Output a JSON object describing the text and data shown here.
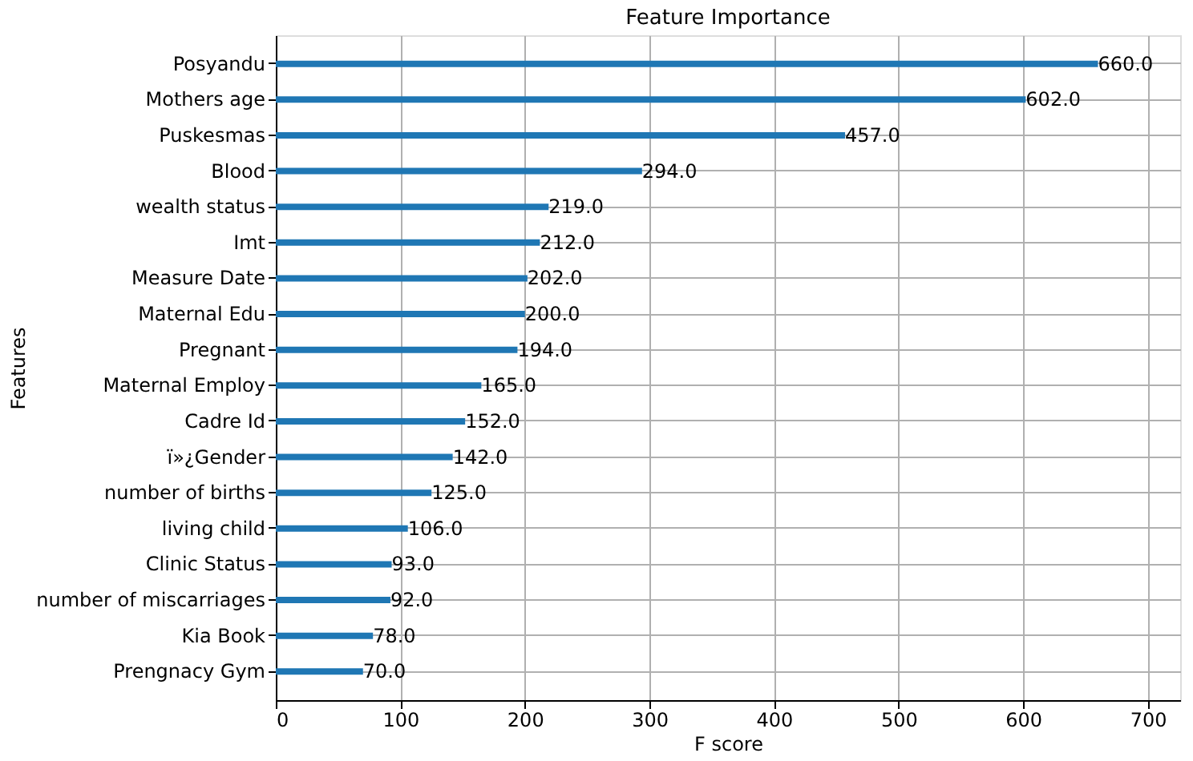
{
  "chart_data": {
    "type": "bar",
    "orientation": "horizontal",
    "title": "Feature Importance",
    "xlabel": "F score",
    "ylabel": "Features",
    "categories": [
      "Posyandu",
      "Mothers age",
      "Puskesmas",
      "Blood",
      "wealth status",
      "Imt",
      "Measure Date",
      "Maternal Edu",
      "Pregnant",
      "Maternal Employ",
      "Cadre Id",
      "ï»¿Gender",
      "number of births",
      "living child",
      "Clinic Status",
      "number of miscarriages",
      "Kia Book",
      "Prengnacy Gym"
    ],
    "values": [
      660,
      602,
      457,
      294,
      219,
      212,
      202,
      200,
      194,
      165,
      152,
      142,
      125,
      106,
      93,
      92,
      78,
      70
    ],
    "value_labels": [
      "660.0",
      "602.0",
      "457.0",
      "294.0",
      "219.0",
      "212.0",
      "202.0",
      "200.0",
      "194.0",
      "165.0",
      "152.0",
      "142.0",
      "125.0",
      "106.0",
      "93.0",
      "92.0",
      "78.0",
      "70.0"
    ],
    "color": "#1f77b4",
    "xlim": [
      0,
      726
    ],
    "xticks": [
      0,
      100,
      200,
      300,
      400,
      500,
      600,
      700
    ],
    "grid": true
  }
}
